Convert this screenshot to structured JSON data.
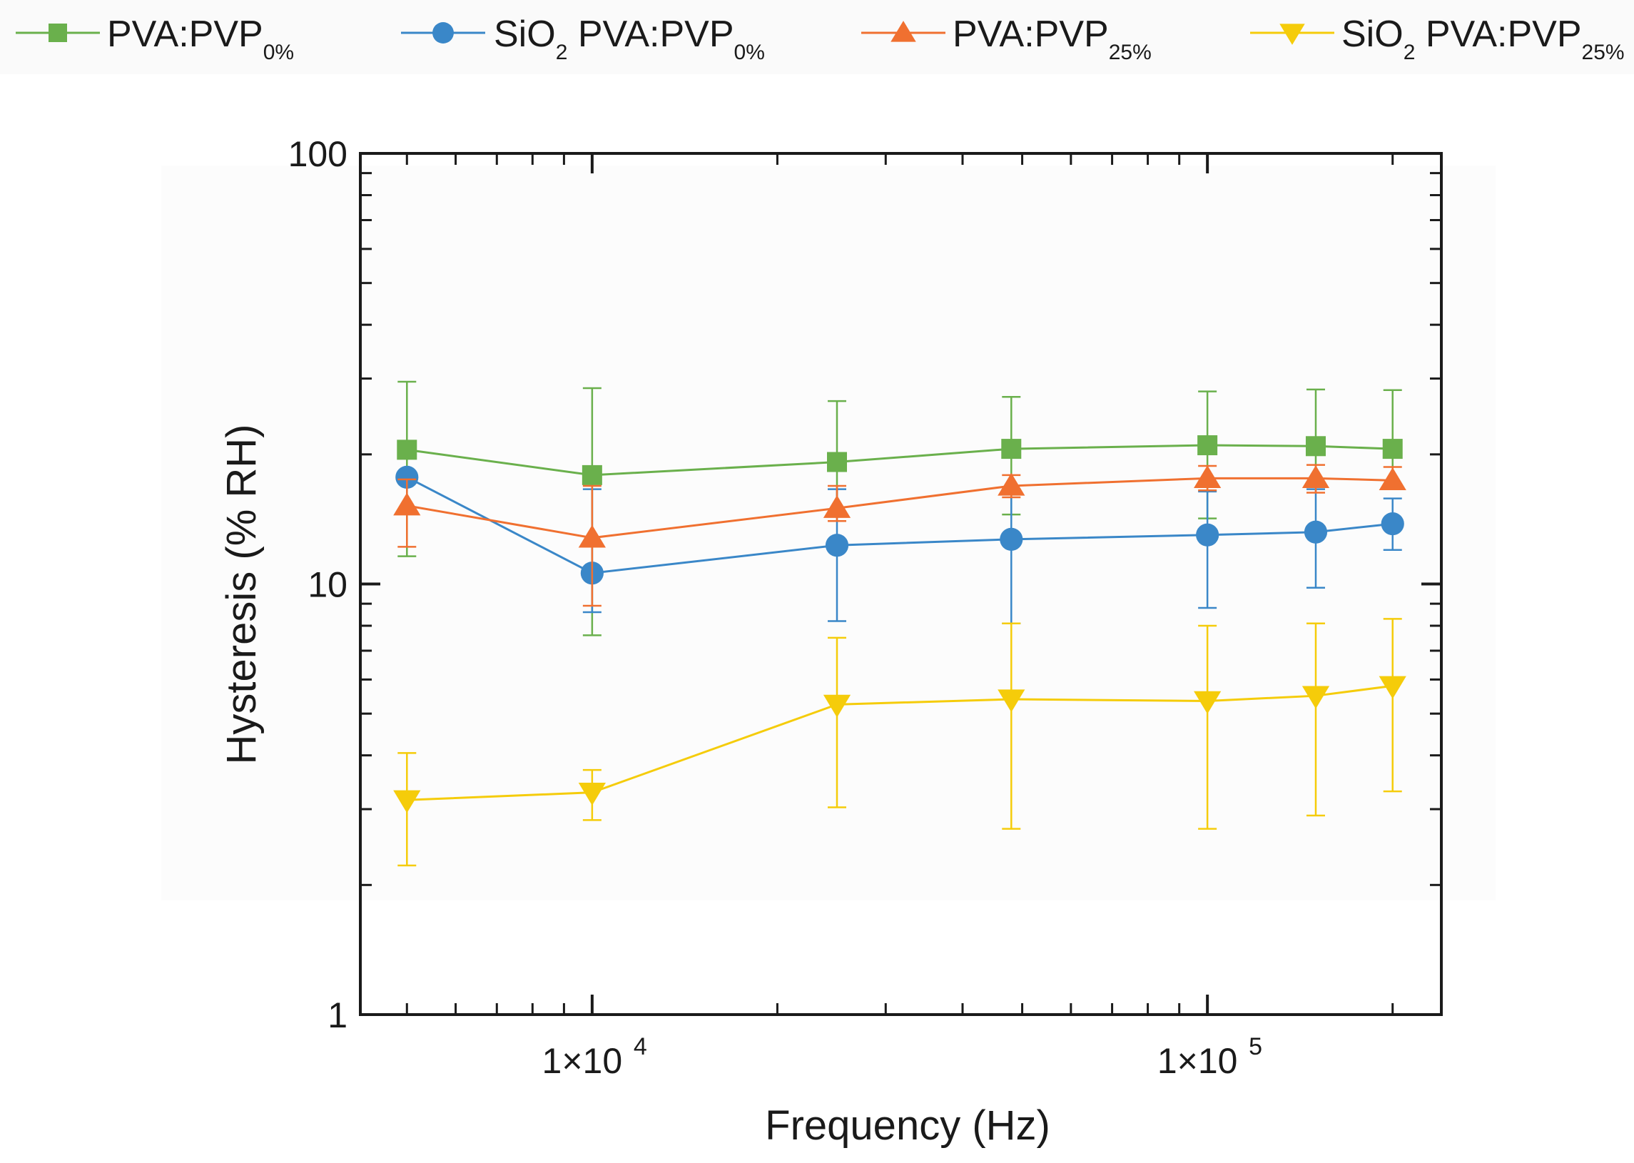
{
  "chart_data": {
    "type": "line",
    "title": "",
    "xlabel": "Frequency (Hz)",
    "ylabel": "Hysteresis  (% RH)",
    "xscale": "log",
    "yscale": "log",
    "xlim": [
      4200,
      240000
    ],
    "ylim": [
      1,
      100
    ],
    "x": [
      5000,
      10000,
      25000,
      48000,
      100000,
      150000,
      200000
    ],
    "y_ticks": [
      {
        "value": 1,
        "label": "1"
      },
      {
        "value": 10,
        "label": "10"
      },
      {
        "value": 100,
        "label": "100"
      }
    ],
    "x_ticks": [
      {
        "value": 10000,
        "mantissa": "1×10",
        "exponent": "4"
      },
      {
        "value": 100000,
        "mantissa": "1×10",
        "exponent": "5"
      }
    ],
    "legend_position": "top",
    "series": [
      {
        "name": "PVA:PVP",
        "sub": "0%",
        "prefix": "",
        "prefix_sub": "",
        "marker": "square",
        "color": "#6ab04c",
        "values": [
          20.5,
          17.9,
          19.2,
          20.6,
          21.0,
          20.9,
          20.6
        ],
        "err_high": [
          29.5,
          28.5,
          26.6,
          27.2,
          28.0,
          28.3,
          28.2
        ],
        "err_low": [
          11.6,
          7.6,
          14.7,
          14.5,
          14.2,
          16.8,
          16.8
        ]
      },
      {
        "name": "PVA:PVP",
        "sub": "0%",
        "prefix": "SiO",
        "prefix_sub": "2",
        "marker": "circle",
        "color": "#3a87c8",
        "values": [
          17.7,
          10.6,
          12.3,
          12.7,
          13.0,
          13.2,
          13.8
        ],
        "err_high": [
          17.7,
          16.6,
          16.6,
          16.6,
          16.4,
          16.6,
          15.8
        ],
        "err_low": [
          14.7,
          8.6,
          8.2,
          8.1,
          8.8,
          9.8,
          12.0
        ]
      },
      {
        "name": "PVA:PVP",
        "sub": "25%",
        "prefix": "",
        "prefix_sub": "",
        "marker": "triangle-up",
        "color": "#f07030",
        "values": [
          15.2,
          12.8,
          15.0,
          16.9,
          17.6,
          17.6,
          17.4
        ],
        "err_high": [
          17.5,
          16.9,
          16.9,
          17.9,
          18.8,
          18.9,
          18.7
        ],
        "err_low": [
          12.2,
          8.9,
          14.0,
          15.9,
          16.5,
          16.3,
          16.6
        ]
      },
      {
        "name": "PVA:PVP",
        "sub": "25%",
        "prefix": "SiO",
        "prefix_sub": "2",
        "marker": "triangle-down",
        "color": "#f5cc0a",
        "values": [
          3.15,
          3.28,
          5.25,
          5.4,
          5.35,
          5.5,
          5.8
        ],
        "err_high": [
          4.05,
          3.7,
          7.5,
          8.1,
          8.0,
          8.1,
          8.3
        ],
        "err_low": [
          2.22,
          2.83,
          3.03,
          2.7,
          2.7,
          2.9,
          3.3
        ]
      }
    ]
  }
}
